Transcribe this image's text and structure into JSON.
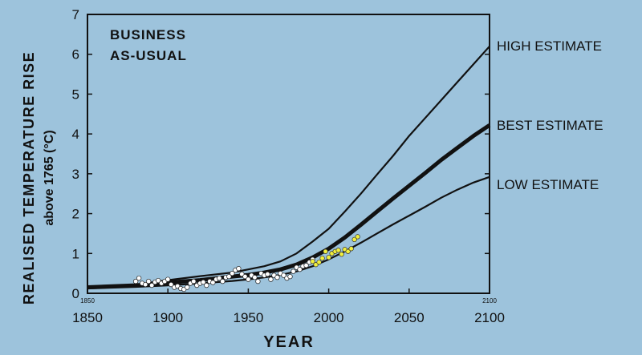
{
  "chart_data": {
    "type": "line",
    "title": "",
    "xlabel": "YEAR",
    "ylabel": "REALISED TEMPERATURE RISE",
    "ylabel_sub": "above 1765 (°C)",
    "xlim": [
      1850,
      2100
    ],
    "ylim": [
      0,
      7
    ],
    "xticks": [
      "1850",
      "1900",
      "1950",
      "2000",
      "2050",
      "2100"
    ],
    "yticks": [
      "0",
      "1",
      "2",
      "3",
      "4",
      "5",
      "6",
      "7"
    ],
    "small_x_labels": [
      "1850",
      "2100"
    ],
    "scenario_label": [
      "BUSINESS",
      "AS-USUAL"
    ],
    "grid": false,
    "series": [
      {
        "name": "HIGH ESTIMATE",
        "x": [
          1850,
          1880,
          1900,
          1920,
          1940,
          1950,
          1960,
          1970,
          1980,
          1990,
          2000,
          2010,
          2020,
          2030,
          2040,
          2050,
          2060,
          2070,
          2080,
          2090,
          2100
        ],
        "y": [
          0.15,
          0.22,
          0.33,
          0.43,
          0.52,
          0.6,
          0.68,
          0.8,
          1.0,
          1.3,
          1.62,
          2.05,
          2.5,
          2.98,
          3.45,
          3.95,
          4.4,
          4.85,
          5.3,
          5.75,
          6.2
        ]
      },
      {
        "name": "BEST ESTIMATE",
        "x": [
          1850,
          1880,
          1900,
          1920,
          1940,
          1950,
          1960,
          1970,
          1980,
          1990,
          2000,
          2010,
          2020,
          2030,
          2040,
          2050,
          2060,
          2070,
          2080,
          2090,
          2100
        ],
        "y": [
          0.15,
          0.2,
          0.27,
          0.33,
          0.42,
          0.46,
          0.52,
          0.6,
          0.72,
          0.9,
          1.12,
          1.4,
          1.72,
          2.05,
          2.38,
          2.7,
          3.02,
          3.35,
          3.65,
          3.95,
          4.22
        ]
      },
      {
        "name": "LOW ESTIMATE",
        "x": [
          1850,
          1880,
          1900,
          1920,
          1940,
          1950,
          1960,
          1970,
          1980,
          1990,
          2000,
          2010,
          2020,
          2030,
          2040,
          2050,
          2060,
          2070,
          2080,
          2090,
          2100
        ],
        "y": [
          0.12,
          0.16,
          0.2,
          0.25,
          0.31,
          0.35,
          0.4,
          0.46,
          0.55,
          0.68,
          0.85,
          1.05,
          1.27,
          1.5,
          1.73,
          1.95,
          2.17,
          2.4,
          2.6,
          2.78,
          2.92
        ]
      }
    ],
    "observed": {
      "x": [
        1880,
        1882,
        1884,
        1886,
        1888,
        1890,
        1892,
        1894,
        1896,
        1898,
        1900,
        1902,
        1904,
        1906,
        1908,
        1910,
        1912,
        1914,
        1916,
        1918,
        1920,
        1922,
        1924,
        1926,
        1928,
        1930,
        1932,
        1934,
        1936,
        1938,
        1940,
        1942,
        1944,
        1946,
        1948,
        1950,
        1952,
        1954,
        1956,
        1958,
        1960,
        1962,
        1964,
        1966,
        1968,
        1970,
        1972,
        1974,
        1976,
        1978,
        1980,
        1982,
        1984,
        1986,
        1988,
        1990
      ],
      "y": [
        0.3,
        0.38,
        0.25,
        0.22,
        0.3,
        0.2,
        0.28,
        0.32,
        0.25,
        0.3,
        0.35,
        0.22,
        0.15,
        0.18,
        0.12,
        0.1,
        0.15,
        0.25,
        0.3,
        0.2,
        0.25,
        0.28,
        0.2,
        0.3,
        0.27,
        0.35,
        0.38,
        0.3,
        0.4,
        0.42,
        0.5,
        0.58,
        0.62,
        0.48,
        0.42,
        0.35,
        0.45,
        0.4,
        0.3,
        0.5,
        0.45,
        0.48,
        0.35,
        0.45,
        0.4,
        0.5,
        0.45,
        0.38,
        0.42,
        0.55,
        0.65,
        0.6,
        0.68,
        0.7,
        0.78,
        0.85
      ]
    },
    "recent": {
      "x": [
        1990,
        1992,
        1994,
        1996,
        1998,
        2000,
        2002,
        2004,
        2006,
        2008,
        2010,
        2012,
        2014,
        2016,
        2018
      ],
      "y": [
        0.8,
        0.72,
        0.78,
        0.88,
        1.05,
        0.9,
        1.0,
        1.05,
        1.08,
        0.98,
        1.1,
        1.05,
        1.12,
        1.35,
        1.42
      ]
    }
  }
}
